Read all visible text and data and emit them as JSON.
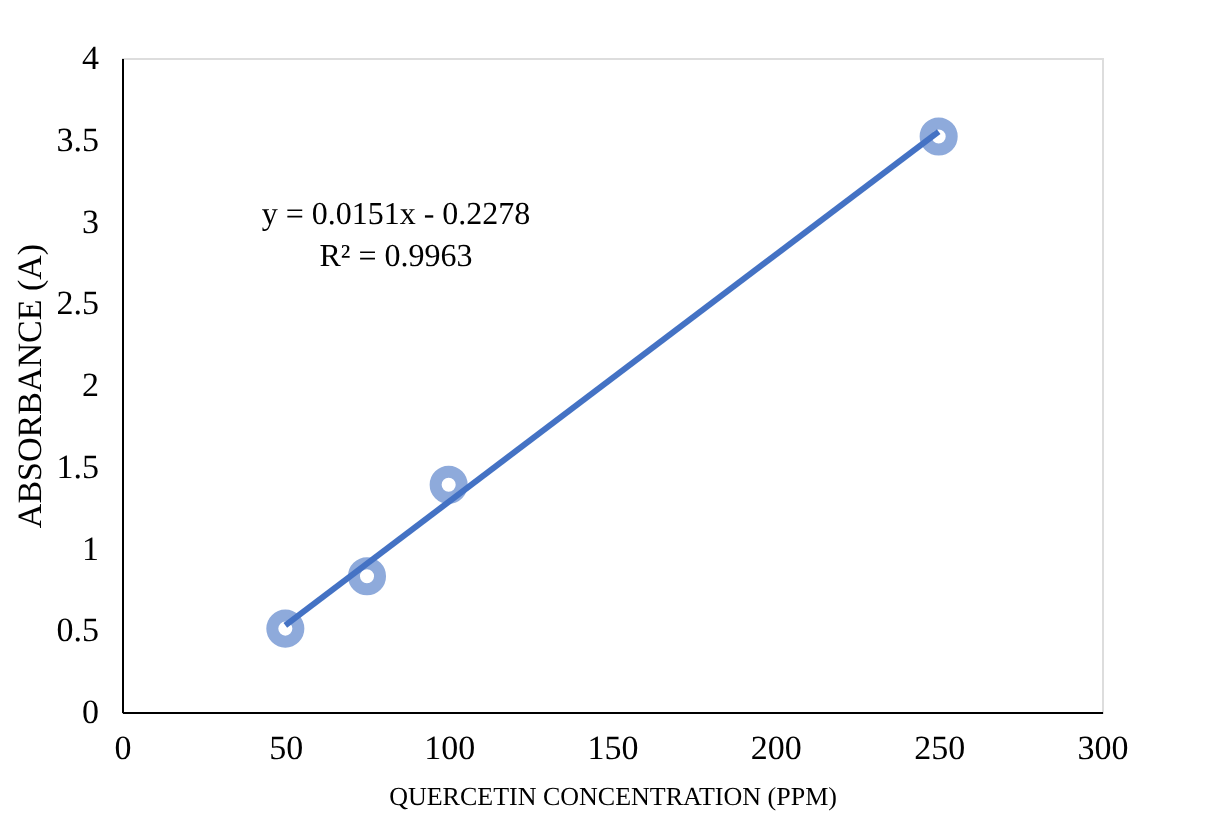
{
  "chart_data": {
    "type": "scatter",
    "xlabel": "QUERCETIN CONCENTRATION (PPM)",
    "ylabel": "ABSORBANCE (A)",
    "x": [
      50,
      75,
      100,
      250
    ],
    "series": [
      {
        "color": "#8eaadb",
        "values": [
          0.51,
          0.83,
          1.39,
          3.52
        ],
        "marker": "circle"
      },
      {
        "type": "line",
        "color": "#4472c4",
        "x": [
          50,
          250
        ],
        "values": [
          0.53,
          3.55
        ],
        "line_style": "solid",
        "marker": "none"
      }
    ],
    "annotations": [
      "y = 0.0151x - 0.2278",
      "R² = 0.9963"
    ],
    "xlim": [
      0,
      300
    ],
    "xticks": [
      0,
      50,
      100,
      150,
      200,
      250,
      300
    ],
    "ylim": [
      0,
      4
    ],
    "yticks": [
      0,
      0.5,
      1,
      1.5,
      2,
      2.5,
      3,
      3.5,
      4
    ],
    "grid": false,
    "legend": false
  }
}
